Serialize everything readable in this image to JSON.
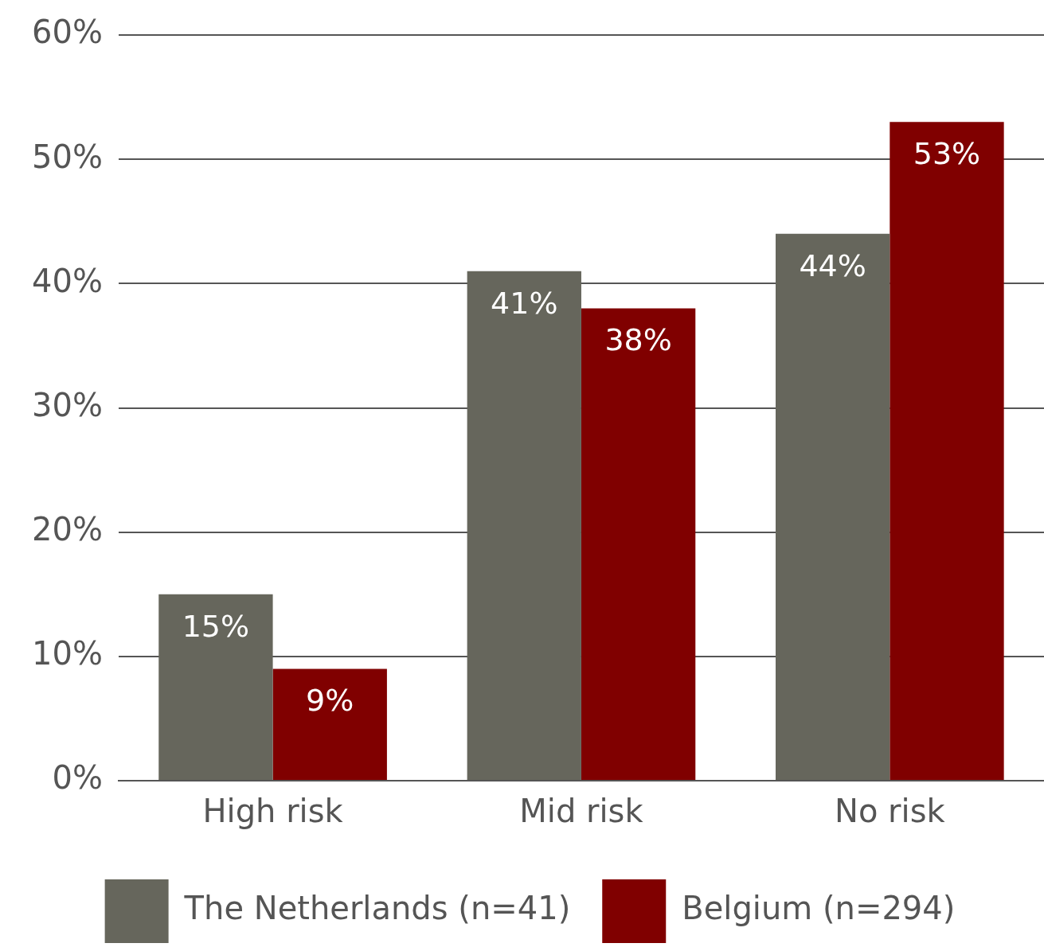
{
  "chart_data": {
    "type": "bar",
    "categories": [
      "High risk",
      "Mid risk",
      "No risk"
    ],
    "series": [
      {
        "name": "The Netherlands (n=41)",
        "color": "#66665c",
        "values": [
          15,
          41,
          44
        ],
        "value_labels": [
          "15%",
          "41%",
          "44%"
        ]
      },
      {
        "name": "Belgium (n=294)",
        "color": "#800000",
        "values": [
          9,
          38,
          53
        ],
        "value_labels": [
          "9%",
          "38%",
          "53%"
        ]
      }
    ],
    "ylim": [
      0,
      60
    ],
    "yticks": [
      {
        "value": 0,
        "label": "0%"
      },
      {
        "value": 10,
        "label": "10%"
      },
      {
        "value": 20,
        "label": "20%"
      },
      {
        "value": 30,
        "label": "30%"
      },
      {
        "value": 40,
        "label": "40%"
      },
      {
        "value": 50,
        "label": "50%"
      },
      {
        "value": 60,
        "label": "60%"
      }
    ],
    "grid": "y",
    "legend": "bottom"
  }
}
